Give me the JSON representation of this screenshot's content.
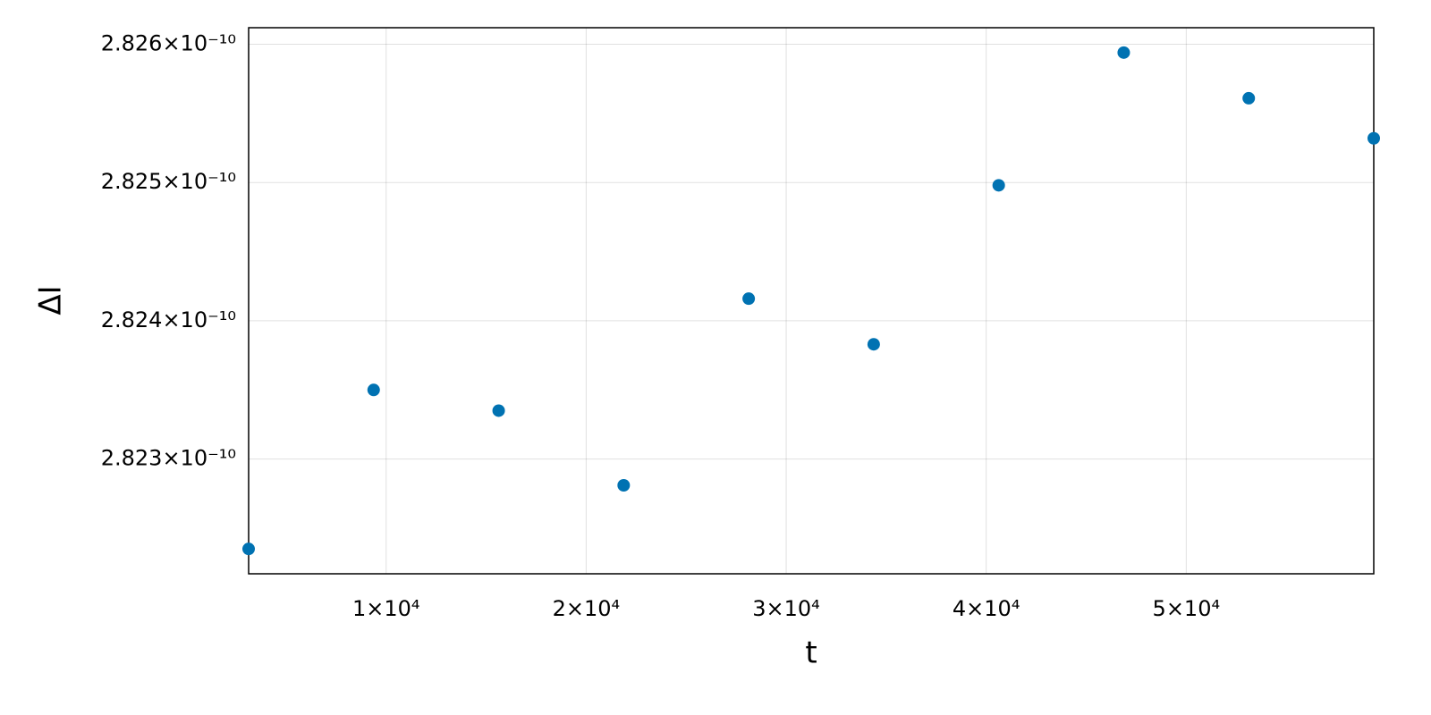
{
  "chart_data": {
    "type": "scatter",
    "x_label": "t",
    "y_label": "ΔI",
    "x": [
      3125,
      9375,
      15625,
      21875,
      28125,
      34375,
      40625,
      46875,
      53125,
      59375
    ],
    "series": [
      {
        "color": "#0072b2",
        "values": [
          2.82235e-10,
          2.8235e-10,
          2.82335e-10,
          2.82281e-10,
          2.82416e-10,
          2.82383e-10,
          2.82498e-10,
          2.82594e-10,
          2.82561e-10,
          2.82532e-10
        ]
      }
    ],
    "xlim": [
      3125,
      59375
    ],
    "ylim": [
      2.82217e-10,
      2.82612e-10
    ],
    "xticks": [
      {
        "value": 10000,
        "label": "1×10⁴"
      },
      {
        "value": 20000,
        "label": "2×10⁴"
      },
      {
        "value": 30000,
        "label": "3×10⁴"
      },
      {
        "value": 40000,
        "label": "4×10⁴"
      },
      {
        "value": 50000,
        "label": "5×10⁴"
      }
    ],
    "yticks": [
      {
        "value": 2.823e-10,
        "label": "2.823×10⁻¹⁰"
      },
      {
        "value": 2.824e-10,
        "label": "2.824×10⁻¹⁰"
      },
      {
        "value": 2.825e-10,
        "label": "2.825×10⁻¹⁰"
      },
      {
        "value": 2.826e-10,
        "label": "2.826×10⁻¹⁰"
      }
    ],
    "grid": true
  }
}
